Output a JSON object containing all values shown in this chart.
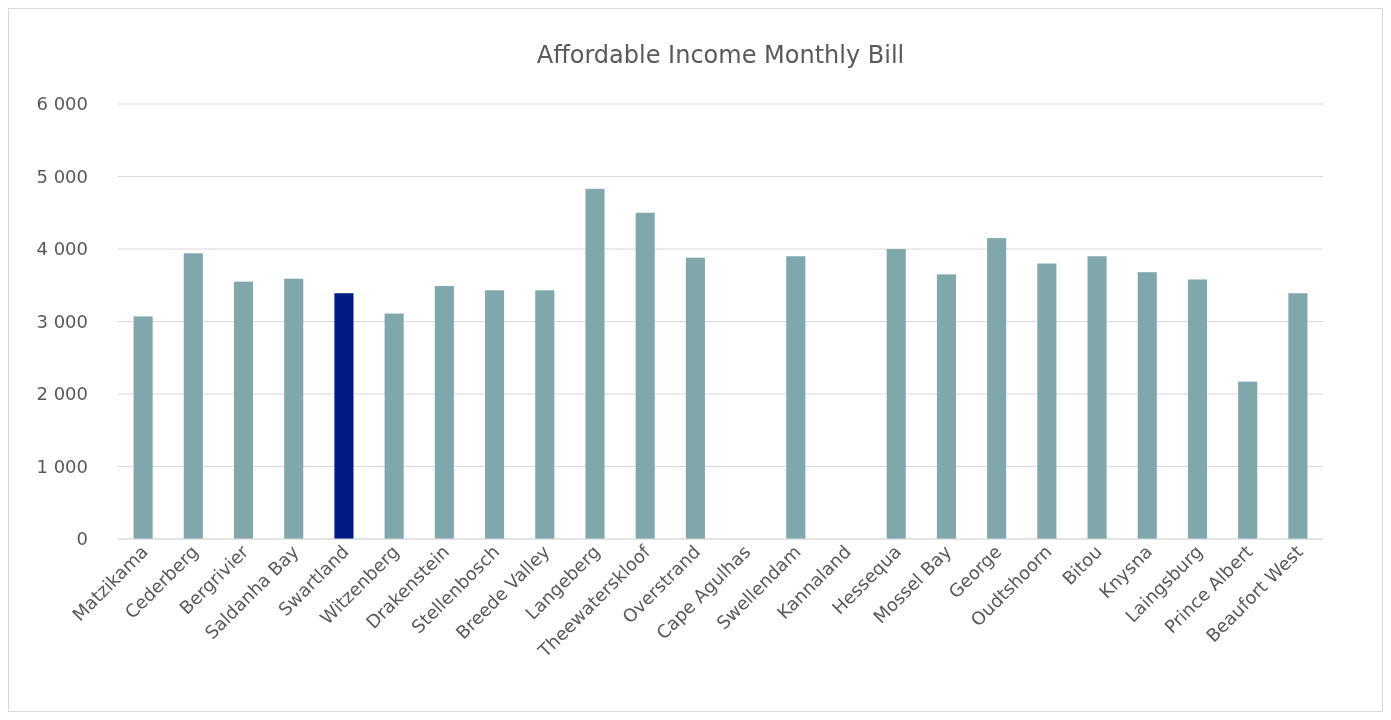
{
  "chart_data": {
    "type": "bar",
    "title": "Affordable Income Monthly Bill",
    "categories": [
      "Matzikama",
      "Cederberg",
      "Bergrivier",
      "Saldanha Bay",
      "Swartland",
      "Witzenberg",
      "Drakenstein",
      "Stellenbosch",
      "Breede Valley",
      "Langeberg",
      "Theewaterskloof",
      "Overstrand",
      "Cape Agulhas",
      "Swellendam",
      "Kannaland",
      "Hessequa",
      "Mossel Bay",
      "George",
      "Oudtshoorn",
      "Bitou",
      "Knysna",
      "Laingsburg",
      "Prince Albert",
      "Beaufort West"
    ],
    "values": [
      3070,
      3940,
      3550,
      3590,
      3390,
      3110,
      3490,
      3430,
      3430,
      4830,
      4500,
      3880,
      null,
      3900,
      null,
      4000,
      3650,
      4150,
      3800,
      3900,
      3680,
      3580,
      2170,
      3390
    ],
    "colors": [
      "#7fa7ac",
      "#7fa7ac",
      "#7fa7ac",
      "#7fa7ac",
      "#001a85",
      "#7fa7ac",
      "#7fa7ac",
      "#7fa7ac",
      "#7fa7ac",
      "#7fa7ac",
      "#7fa7ac",
      "#7fa7ac",
      null,
      "#7fa7ac",
      null,
      "#7fa7ac",
      "#7fa7ac",
      "#7fa7ac",
      "#7fa7ac",
      "#7fa7ac",
      "#7fa7ac",
      "#7fa7ac",
      "#7fa7ac",
      "#7fa7ac"
    ],
    "ylim": [
      0,
      6000
    ],
    "yticks": [
      {
        "value": 0,
        "label": "0"
      },
      {
        "value": 1000,
        "label": "1 000"
      },
      {
        "value": 2000,
        "label": "2 000"
      },
      {
        "value": 3000,
        "label": "3 000"
      },
      {
        "value": 4000,
        "label": "4 000"
      },
      {
        "value": 5000,
        "label": "5 000"
      },
      {
        "value": 6000,
        "label": "6 000"
      }
    ],
    "grid": "y"
  }
}
